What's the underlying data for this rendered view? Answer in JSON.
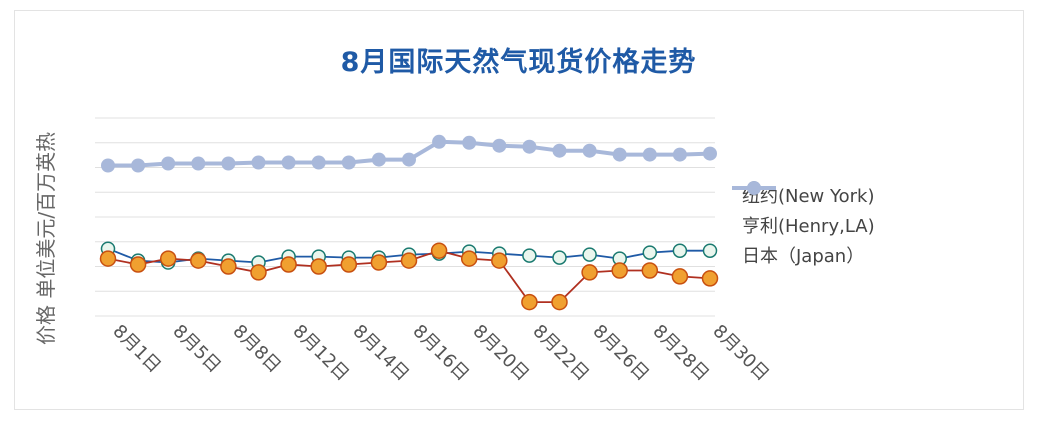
{
  "chart_data": {
    "type": "line",
    "title": "8月国际天然气现货价格走势",
    "ylabel": "价格 单位美元/百万英热",
    "xlabel": "",
    "x_tick_labels": [
      "8月1日",
      "8月5日",
      "8月8日",
      "8月12日",
      "8月14日",
      "8月16日",
      "8月20日",
      "8月22日",
      "8月26日",
      "8月28日",
      "8月30日"
    ],
    "ylim": [
      0,
      10
    ],
    "grid": true,
    "legend_position": "right",
    "series": [
      {
        "name": "纽约(New York)",
        "color": "#f0a030",
        "values": [
          2.9,
          2.6,
          2.9,
          2.8,
          2.5,
          2.2,
          2.6,
          2.5,
          2.6,
          2.7,
          2.8,
          3.3,
          2.9,
          2.8,
          0.7,
          0.7,
          2.2,
          2.3,
          2.3,
          2.0,
          1.9
        ]
      },
      {
        "name": "亨利(Henry,LA)",
        "color": "#1f5aa6",
        "values": [
          3.4,
          2.8,
          2.7,
          2.9,
          2.8,
          2.7,
          3.0,
          3.0,
          2.95,
          2.95,
          3.1,
          3.15,
          3.25,
          3.15,
          3.05,
          2.95,
          3.1,
          2.9,
          3.2,
          3.3,
          3.3
        ]
      },
      {
        "name": "日本（Japan）",
        "color": "#a8b8da",
        "values": [
          7.6,
          7.6,
          7.7,
          7.7,
          7.7,
          7.75,
          7.75,
          7.75,
          7.75,
          7.9,
          7.9,
          8.8,
          8.75,
          8.6,
          8.55,
          8.35,
          8.35,
          8.15,
          8.15,
          8.15,
          8.2
        ]
      }
    ]
  }
}
